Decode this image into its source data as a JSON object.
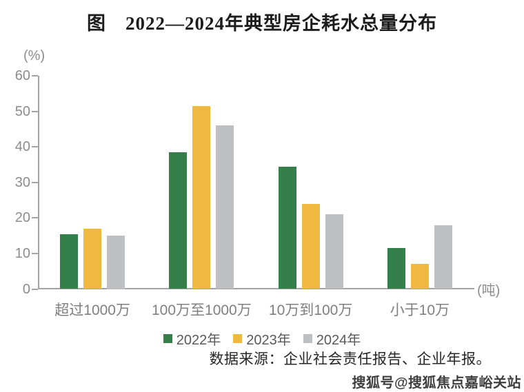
{
  "title": "图　2022—2024年典型房企耗水总量分布",
  "chart_data": {
    "type": "bar",
    "categories": [
      "超过1000万",
      "100万至1000万",
      "10万到100万",
      "小于10万"
    ],
    "series": [
      {
        "name": "2022年",
        "color": "#35804a",
        "values": [
          15.5,
          38.5,
          34.5,
          11.5
        ]
      },
      {
        "name": "2023年",
        "color": "#eeb93e",
        "values": [
          17,
          51.5,
          24,
          7
        ]
      },
      {
        "name": "2024年",
        "color": "#bdbfc2",
        "values": [
          15,
          46,
          21,
          18
        ]
      }
    ],
    "ylabel": "(%)",
    "xlabel": "(吨)",
    "ylim": [
      0,
      60
    ],
    "yticks": [
      0,
      10,
      20,
      30,
      40,
      50,
      60
    ],
    "grid": false,
    "legend_position": "bottom"
  },
  "source_note": "数据来源：企业社会责任报告、企业年报。",
  "watermark": "搜狐号@搜狐焦点嘉峪关站",
  "colors": {
    "axis": "#a3a3a3",
    "tick_label": "#8c8c8c",
    "category_label": "#7f7f7f",
    "legend_text": "#595959",
    "title_text": "#1c1c1c",
    "source_text": "#262626",
    "background": "#ffffff"
  }
}
